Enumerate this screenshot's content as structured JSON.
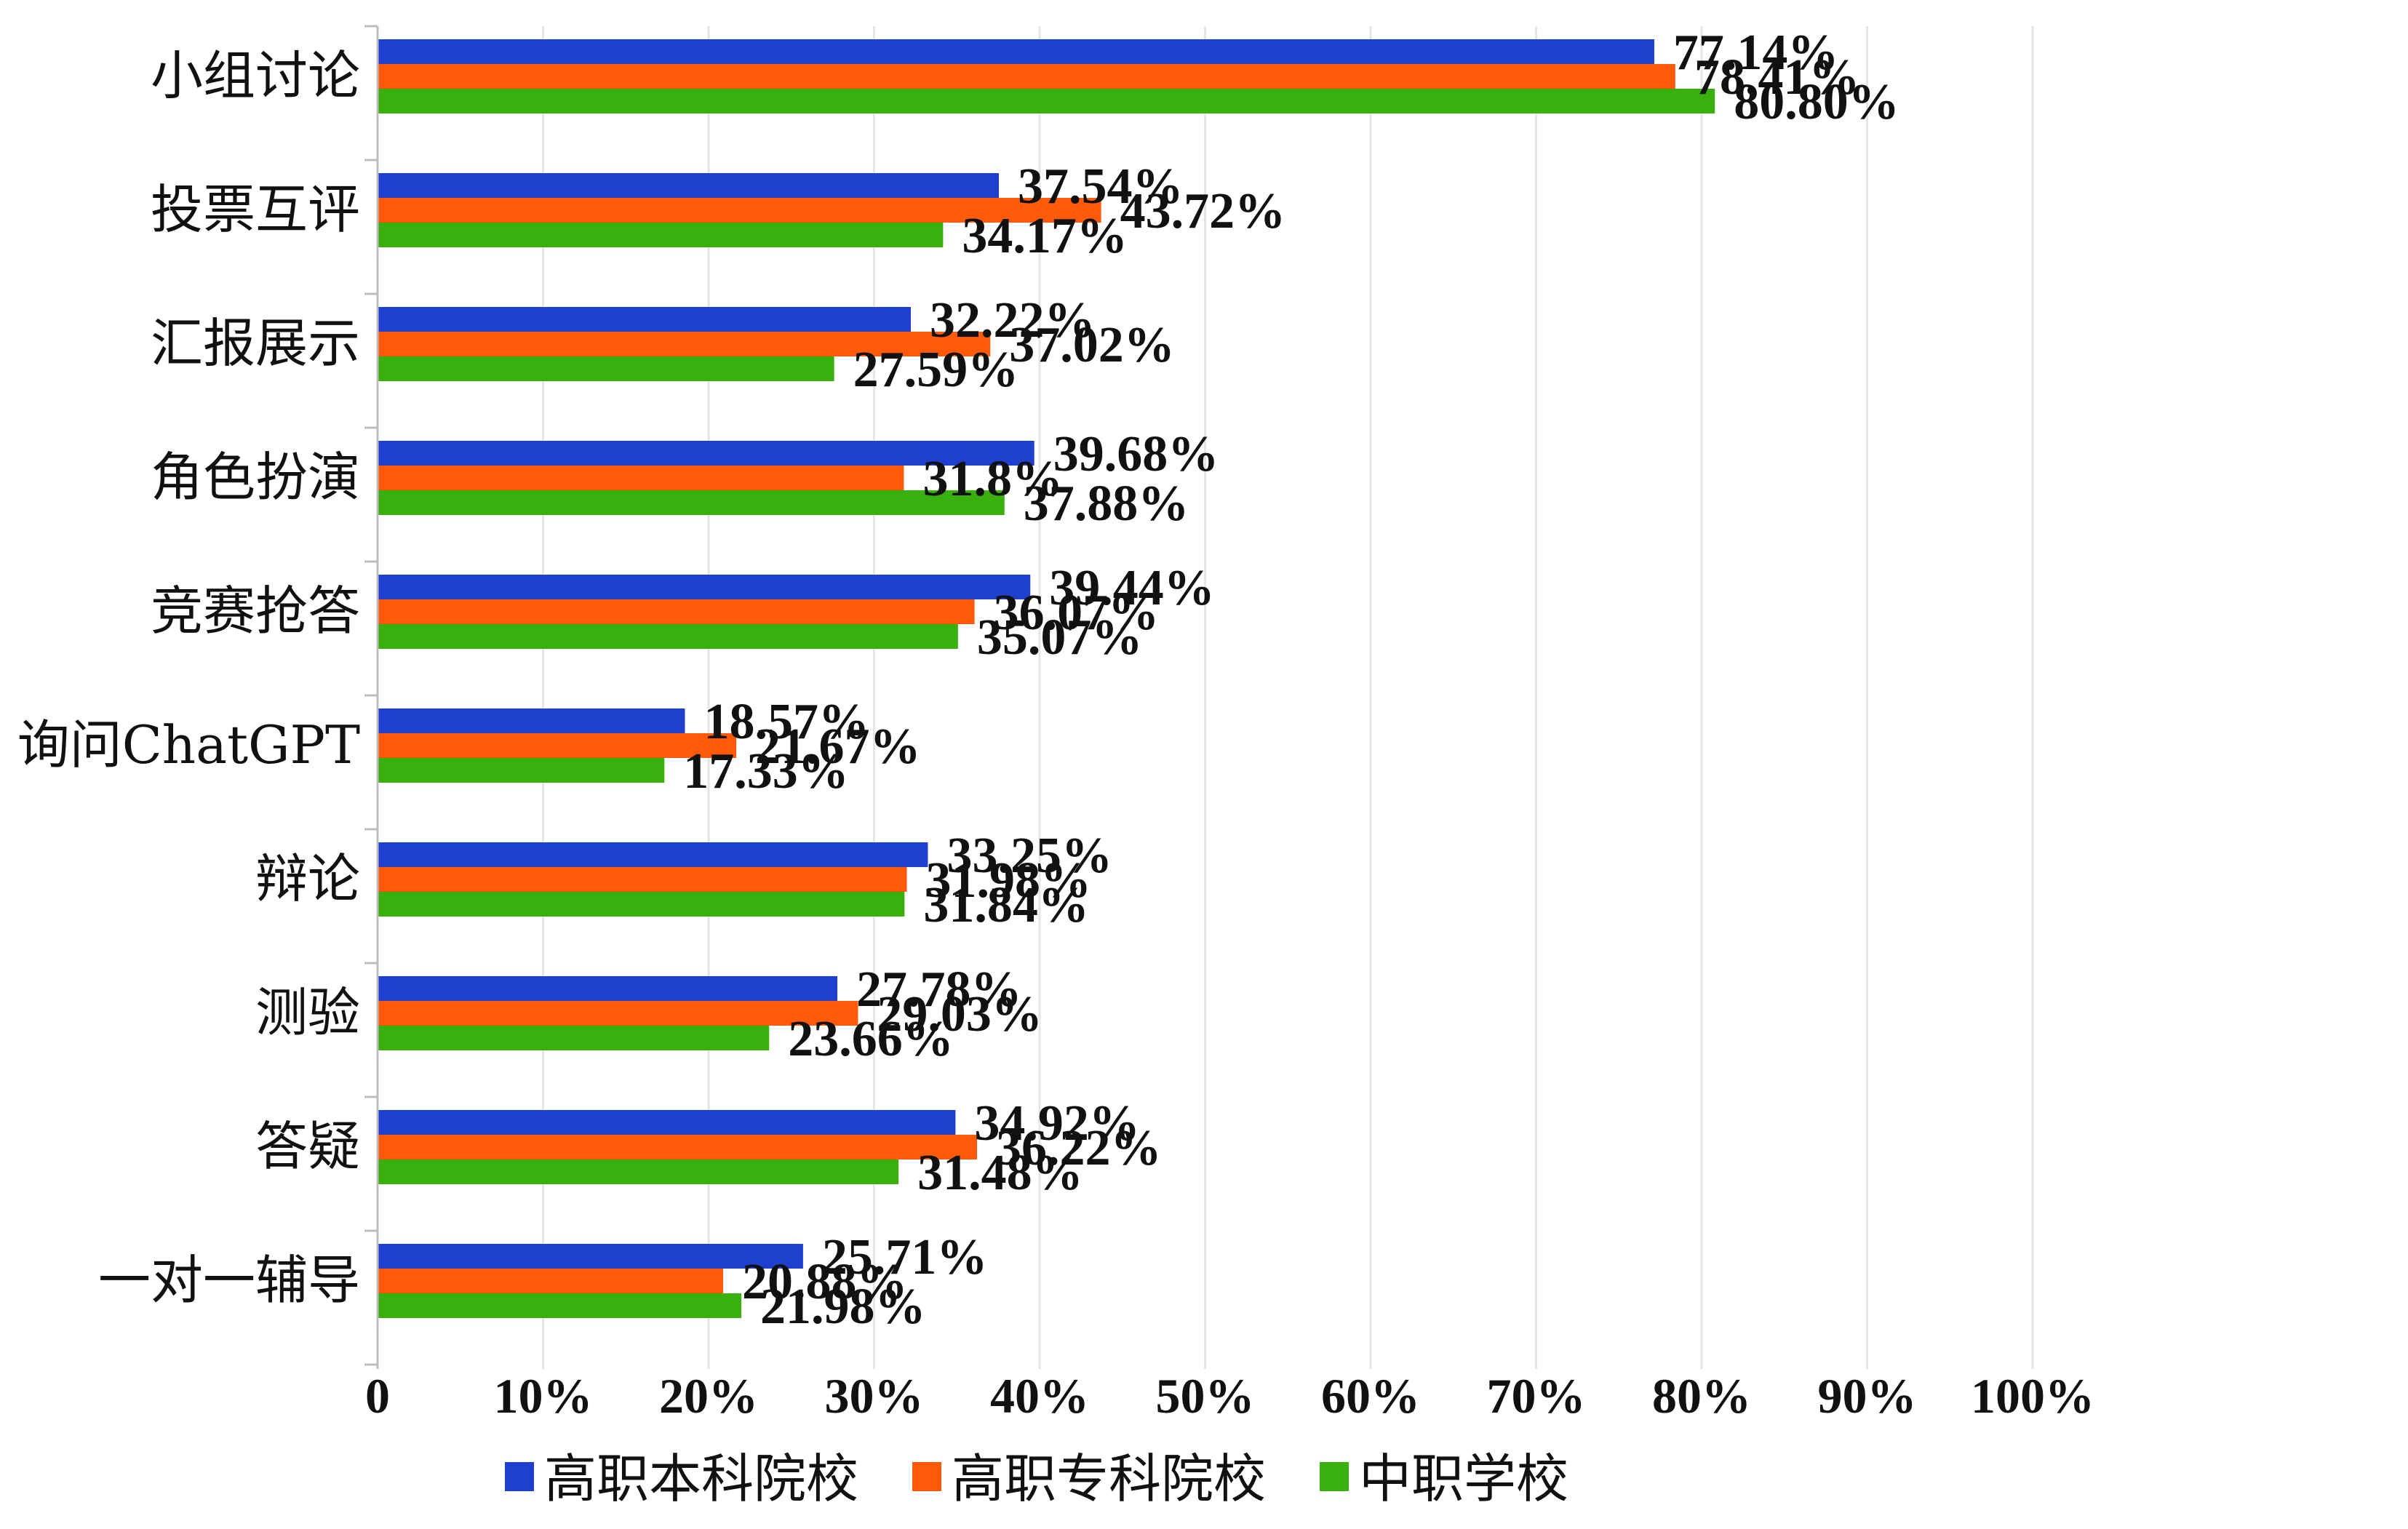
{
  "chart_data": {
    "type": "bar",
    "orientation": "horizontal",
    "categories": [
      "小组讨论",
      "投票互评",
      "汇报展示",
      "角色扮演",
      "竞赛抢答",
      "询问ChatGPT",
      "辩论",
      "测验",
      "答疑",
      "一对一辅导"
    ],
    "series": [
      {
        "name": "高职本科院校",
        "color": "#1f3fcf",
        "values": [
          77.14,
          37.54,
          32.22,
          39.68,
          39.44,
          18.57,
          33.25,
          27.78,
          34.92,
          25.71
        ],
        "labels": [
          "77.14%",
          "37.54%",
          "32.22%",
          "39.68%",
          "39.44%",
          "18.57%",
          "33.25%",
          "27.78%",
          "34.92%",
          "25.71%"
        ]
      },
      {
        "name": "高职专科院校",
        "color": "#ff5a0a",
        "values": [
          78.41,
          43.72,
          37.02,
          31.8,
          36.07,
          21.67,
          31.98,
          29.03,
          36.22,
          20.88
        ],
        "labels": [
          "78.41%",
          "43.72%",
          "37.02%",
          "31.8%",
          "36.07%",
          "21.67%",
          "31.98%",
          "29.03%",
          "36.22%",
          "20.88%"
        ]
      },
      {
        "name": "中职学校",
        "color": "#39b00e",
        "values": [
          80.8,
          34.17,
          27.59,
          37.88,
          35.07,
          17.33,
          31.84,
          23.66,
          31.48,
          21.98
        ],
        "labels": [
          "80.80%",
          "34.17%",
          "27.59%",
          "37.88%",
          "35.07%",
          "17.33%",
          "31.84%",
          "23.66%",
          "31.48%",
          "21.98%"
        ]
      }
    ],
    "x_ticks": [
      "0",
      "10%",
      "20%",
      "30%",
      "40%",
      "50%",
      "60%",
      "70%",
      "80%",
      "90%",
      "100%"
    ],
    "xlim": [
      0,
      100
    ],
    "grid": true,
    "legend_position": "bottom"
  }
}
